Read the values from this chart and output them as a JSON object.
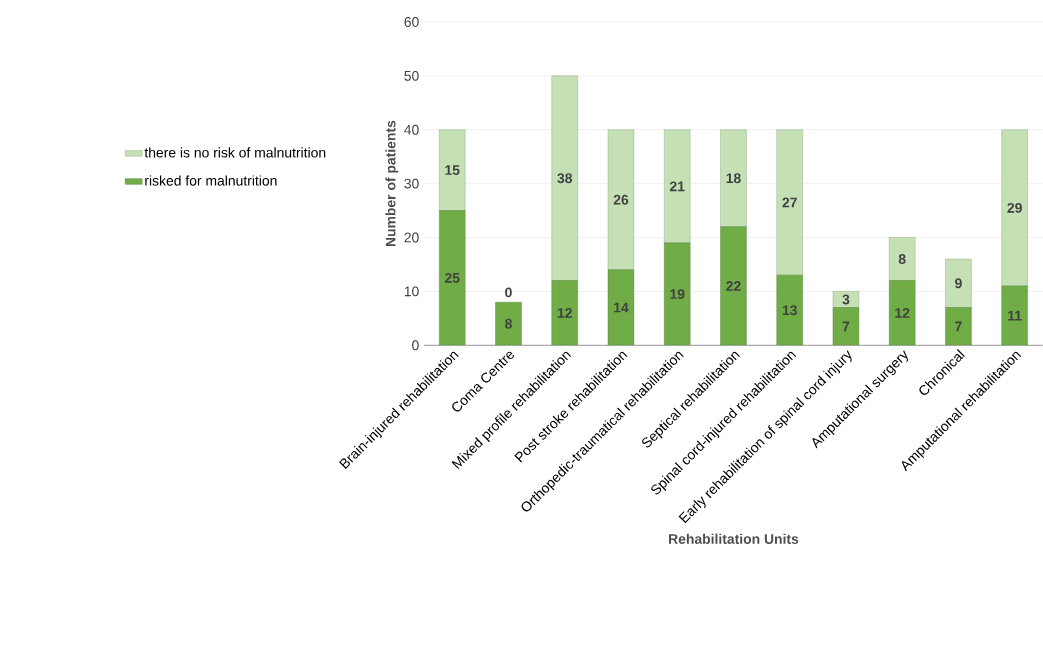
{
  "chart_data": {
    "type": "bar",
    "stacked": true,
    "xlabel": "Rehabilitation Units",
    "ylabel": "Number of patients",
    "categories": [
      "Brain-injured rehabilitation",
      "Coma Centre",
      "Mixed profile rehabilitation",
      "Post stroke rehabilitation",
      "Orthopedic-traumatical rehabilitation",
      "Septical rehabilitation",
      "Spinal cord-injured rehabilitation",
      "Early rehabilitation of spinal cord injury",
      "Amputational surgery",
      "Chronical",
      "Amputational rehabilitation"
    ],
    "series": [
      {
        "name": "risked for malnutrition",
        "color": "#70ad47",
        "values": [
          25,
          8,
          12,
          14,
          19,
          22,
          13,
          7,
          12,
          7,
          11
        ],
        "value_labels": [
          "25",
          "8",
          "12",
          "14",
          "19",
          "22",
          "13",
          "7",
          "12",
          "7",
          "11"
        ]
      },
      {
        "name": "there is no risk of malnutrition",
        "color": "#c5e0b4",
        "values": [
          15,
          0,
          38,
          26,
          21,
          18,
          27,
          3,
          8,
          9,
          29
        ],
        "value_labels": [
          "15",
          "0",
          "38",
          "26",
          "21",
          "18",
          "27",
          "3",
          "8",
          "9",
          "29"
        ]
      }
    ],
    "ylim": [
      0,
      60
    ],
    "yticks": [
      0,
      10,
      20,
      30,
      40,
      50,
      60
    ],
    "grid": "y",
    "legend": "left"
  }
}
